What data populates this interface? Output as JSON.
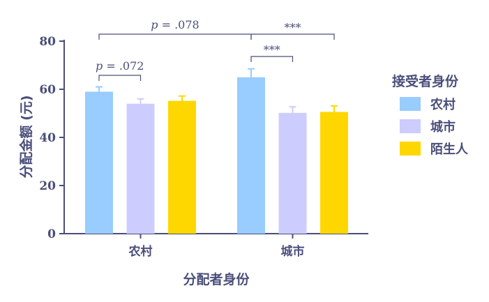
{
  "chart_data": {
    "type": "bar",
    "xlabel": "分配者身份",
    "ylabel": "分配金额 (元)",
    "ylim": [
      0,
      80
    ],
    "yticks": [
      0,
      20,
      40,
      60,
      80
    ],
    "categories": [
      "农村",
      "城市"
    ],
    "legend_title": "接受者身份",
    "legend_position": "right",
    "series": [
      {
        "name": "农村",
        "color": "#99ccff",
        "values": [
          59,
          65
        ],
        "errors": [
          2.0,
          3.5
        ]
      },
      {
        "name": "城市",
        "color": "#ccccff",
        "values": [
          54,
          50.2
        ],
        "errors": [
          2.0,
          2.5
        ]
      },
      {
        "name": "陌生人",
        "color": "#ffd700",
        "values": [
          55.2,
          50.6
        ],
        "errors": [
          2.0,
          2.5
        ]
      }
    ],
    "annotations": [
      {
        "label": "p = .072",
        "from": {
          "category": 0,
          "series": 0
        },
        "to": {
          "category": 0,
          "series": 1
        }
      },
      {
        "label": "p = .078",
        "from": {
          "category": 0,
          "series": 0
        },
        "to": {
          "category": 1,
          "series": 0
        }
      },
      {
        "label": "***",
        "from": {
          "category": 1,
          "series": 0
        },
        "to": {
          "category": 1,
          "series": 1
        }
      },
      {
        "label": "***",
        "from": {
          "category": 1,
          "series": 0
        },
        "to": {
          "category": 1,
          "series": 2
        }
      }
    ]
  }
}
